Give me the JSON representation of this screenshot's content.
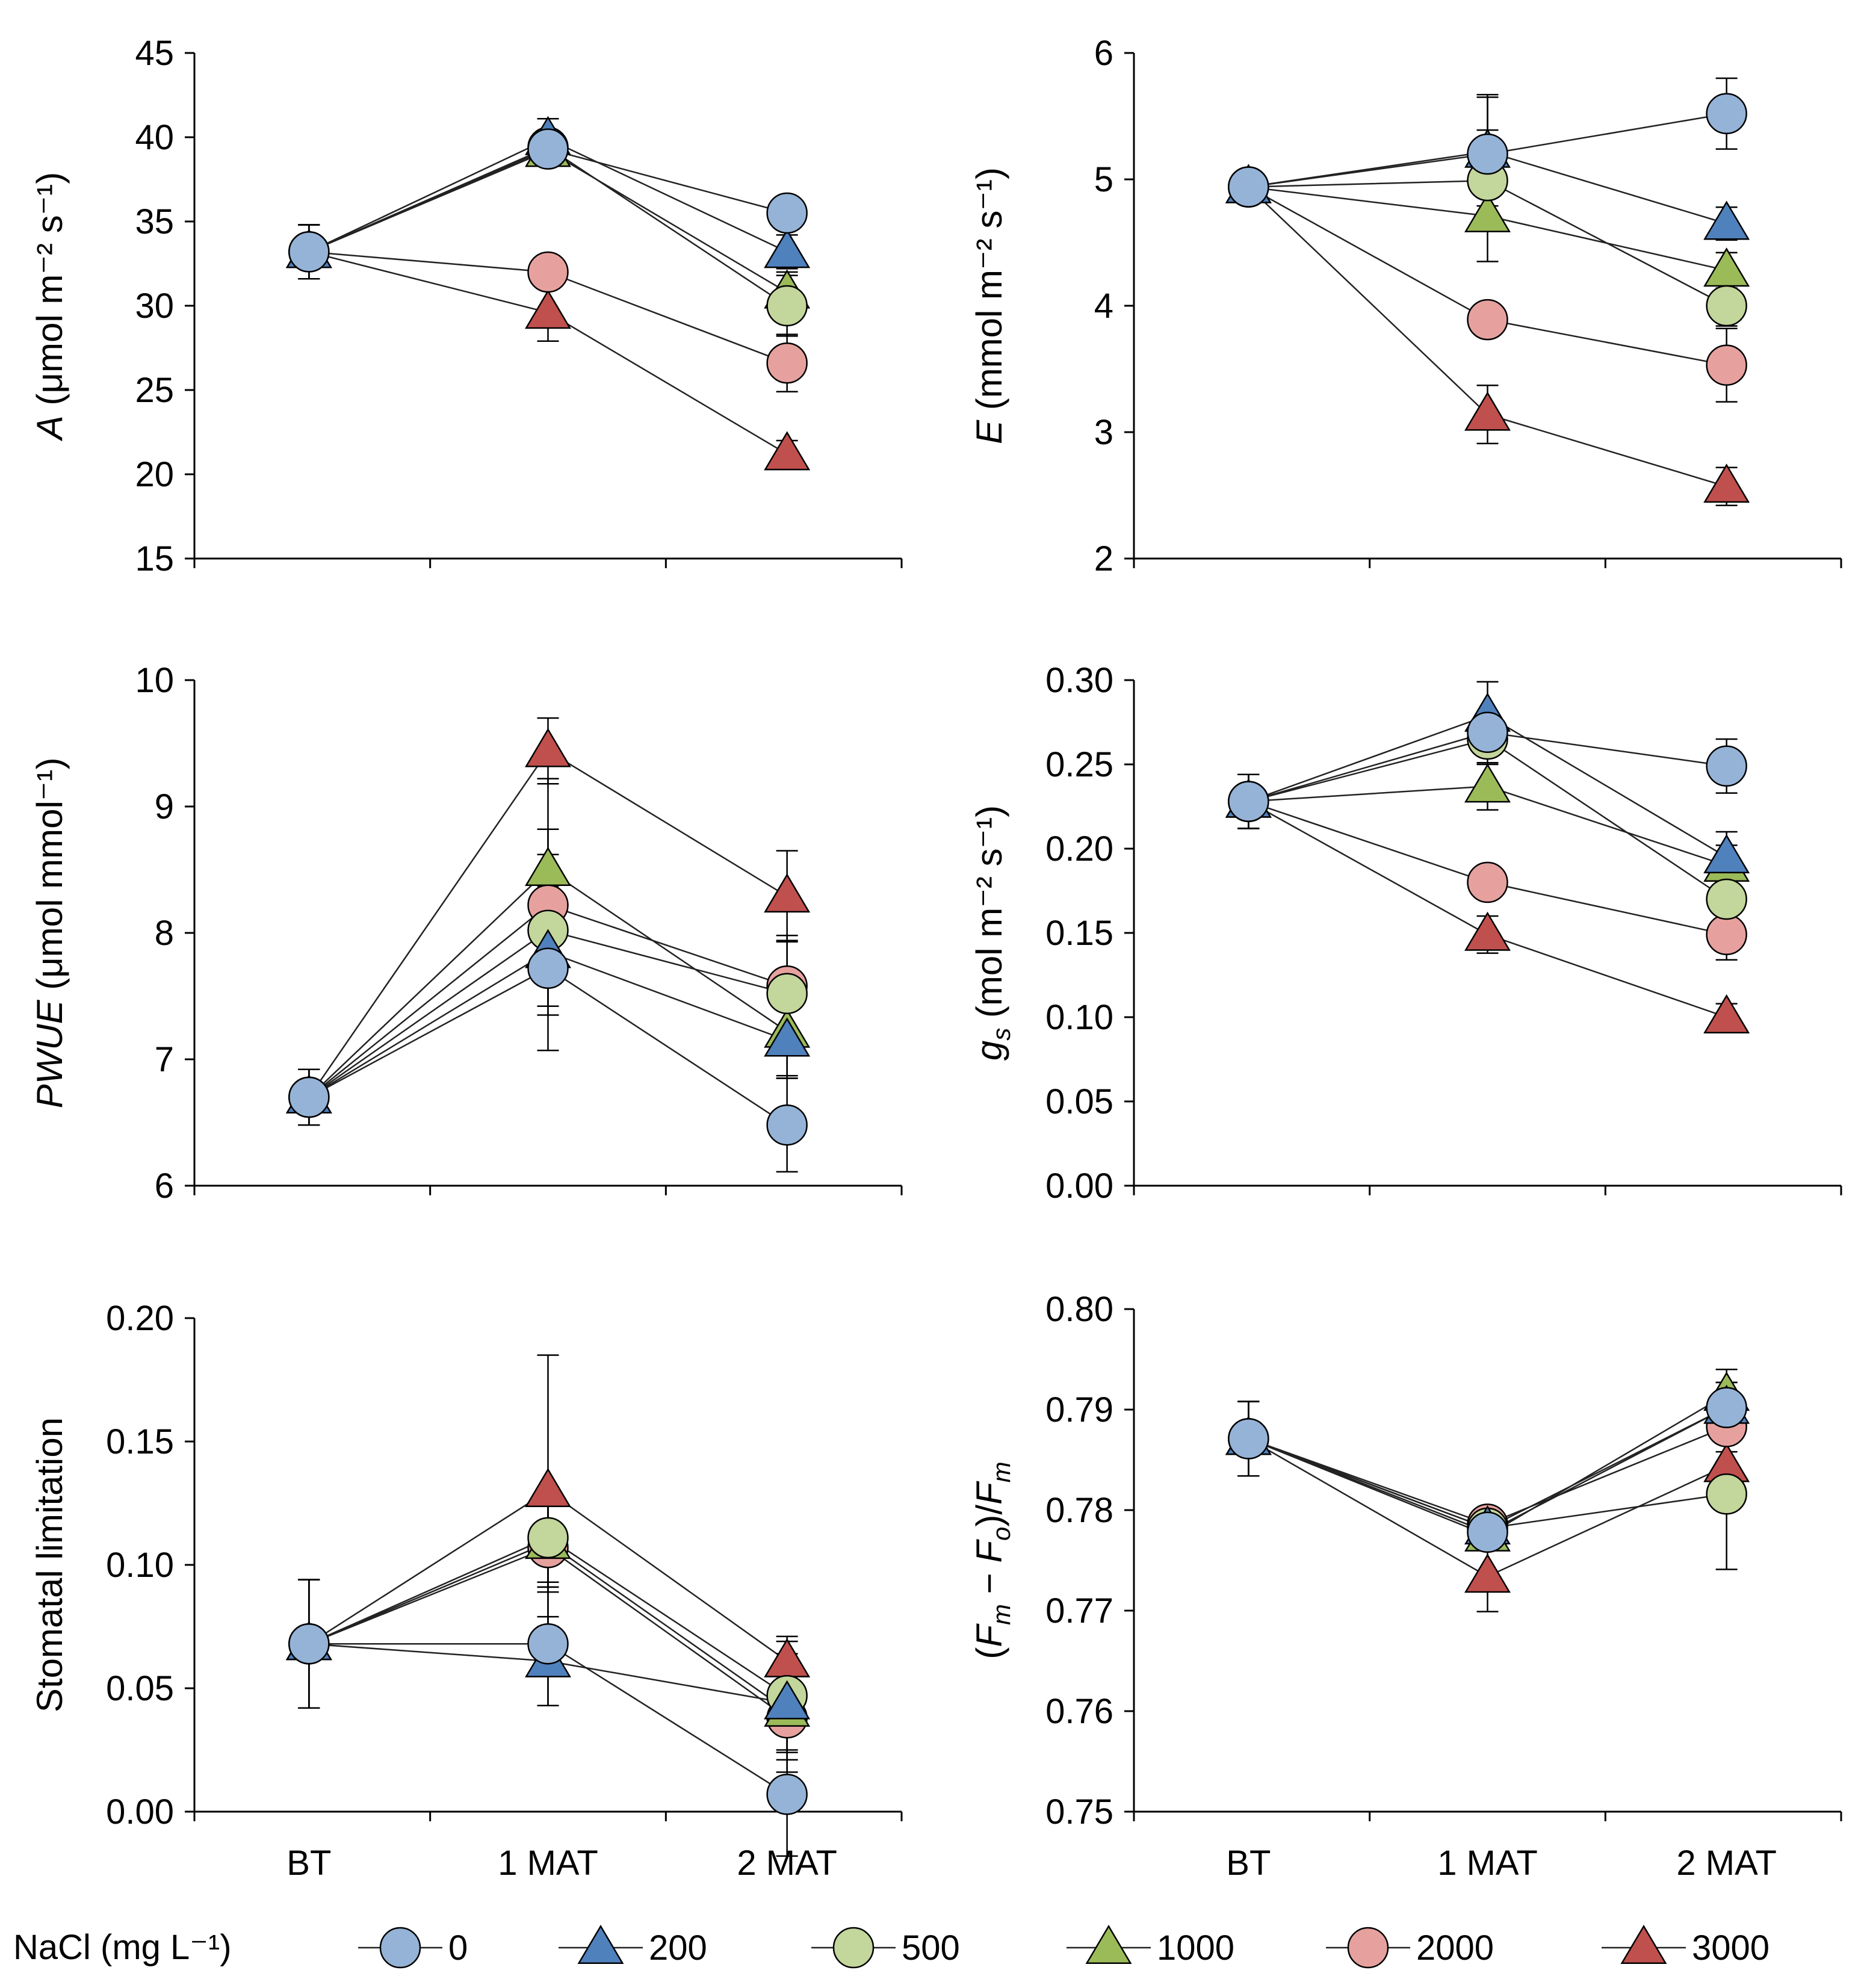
{
  "legend": {
    "title": "NaCl (mg L⁻¹)",
    "items": [
      {
        "label": "0",
        "marker": "circle",
        "color": "#95B3D7"
      },
      {
        "label": "200",
        "marker": "triangle",
        "color": "#4F81BD"
      },
      {
        "label": "500",
        "marker": "circle",
        "color": "#C3D69B"
      },
      {
        "label": "1000",
        "marker": "triangle",
        "color": "#9BBB59"
      },
      {
        "label": "2000",
        "marker": "circle",
        "color": "#E6A19E"
      },
      {
        "label": "3000",
        "marker": "triangle",
        "color": "#C0504D"
      }
    ]
  },
  "chart_data": [
    {
      "id": "A",
      "type": "line",
      "categories": [
        "BT",
        "1 MAT",
        "2 MAT"
      ],
      "ylabel": {
        "italic": "A",
        "rest": " (μmol m⁻² s⁻¹)"
      },
      "ylim": [
        15,
        45
      ],
      "yticks": [
        15,
        20,
        25,
        30,
        35,
        40,
        45
      ],
      "ytick_labels": [
        "15",
        "20",
        "25",
        "30",
        "35",
        "40",
        "45"
      ],
      "series": [
        {
          "name": "0",
          "values": [
            33.2,
            39.3,
            35.5
          ],
          "errors": [
            1.6,
            0.9,
            0.8
          ]
        },
        {
          "name": "200",
          "values": [
            33.2,
            39.9,
            33.2
          ],
          "errors": [
            1.6,
            1.2,
            1.0
          ]
        },
        {
          "name": "500",
          "values": [
            33.2,
            39.4,
            30.0
          ],
          "errors": [
            1.6,
            0.9,
            1.8
          ]
        },
        {
          "name": "1000",
          "values": [
            33.2,
            39.2,
            30.8
          ],
          "errors": [
            1.6,
            0.8,
            1.2
          ]
        },
        {
          "name": "2000",
          "values": [
            33.2,
            32.0,
            26.6
          ],
          "errors": [
            1.6,
            0.9,
            1.7
          ]
        },
        {
          "name": "3000",
          "values": [
            33.2,
            29.6,
            21.2
          ],
          "errors": [
            1.6,
            1.7,
            0.8
          ]
        }
      ]
    },
    {
      "id": "E",
      "type": "line",
      "categories": [
        "BT",
        "1 MAT",
        "2 MAT"
      ],
      "ylabel": {
        "italic": "E",
        "rest": " (mmol m⁻² s⁻¹)"
      },
      "ylim": [
        2,
        6
      ],
      "yticks": [
        2,
        3,
        4,
        5,
        6
      ],
      "ytick_labels": [
        "2",
        "3",
        "4",
        "5",
        "6"
      ],
      "series": [
        {
          "name": "0",
          "values": [
            4.94,
            5.2,
            5.52
          ],
          "errors": [
            0.1,
            0.47,
            0.28
          ]
        },
        {
          "name": "200",
          "values": [
            4.94,
            5.22,
            4.65
          ],
          "errors": [
            0.1,
            0.43,
            0.13
          ]
        },
        {
          "name": "500",
          "values": [
            4.94,
            4.99,
            4.0
          ],
          "errors": [
            0.1,
            0.4,
            0.16
          ]
        },
        {
          "name": "1000",
          "values": [
            4.94,
            4.71,
            4.28
          ],
          "errors": [
            0.1,
            0.36,
            0.14
          ]
        },
        {
          "name": "2000",
          "values": [
            4.94,
            3.89,
            3.53
          ],
          "errors": [
            0.1,
            0.1,
            0.29
          ]
        },
        {
          "name": "3000",
          "values": [
            4.94,
            3.14,
            2.57
          ],
          "errors": [
            0.1,
            0.23,
            0.15
          ]
        }
      ]
    },
    {
      "id": "PWUE",
      "type": "line",
      "categories": [
        "BT",
        "1 MAT",
        "2 MAT"
      ],
      "ylabel": {
        "italic": "PWUE",
        "rest": " (μmol mmol⁻¹)"
      },
      "ylim": [
        6,
        10
      ],
      "yticks": [
        6,
        7,
        8,
        9,
        10
      ],
      "ytick_labels": [
        "6",
        "7",
        "8",
        "9",
        "10"
      ],
      "series": [
        {
          "name": "0",
          "values": [
            6.7,
            7.72,
            6.48
          ],
          "errors": [
            0.22,
            0.65,
            0.37
          ]
        },
        {
          "name": "200",
          "values": [
            6.7,
            7.85,
            7.15
          ],
          "errors": [
            0.22,
            0.5,
            0.3
          ]
        },
        {
          "name": "500",
          "values": [
            6.7,
            8.02,
            7.52
          ],
          "errors": [
            0.22,
            0.6,
            0.42
          ]
        },
        {
          "name": "1000",
          "values": [
            6.7,
            8.5,
            7.22
          ],
          "errors": [
            0.22,
            0.72,
            0.35
          ]
        },
        {
          "name": "2000",
          "values": [
            6.7,
            8.22,
            7.58
          ],
          "errors": [
            0.22,
            0.6,
            0.4
          ]
        },
        {
          "name": "3000",
          "values": [
            6.7,
            9.44,
            8.29
          ],
          "errors": [
            0.22,
            0.26,
            0.36
          ]
        }
      ]
    },
    {
      "id": "gs",
      "type": "line",
      "categories": [
        "BT",
        "1 MAT",
        "2 MAT"
      ],
      "ylabel": {
        "italic": "g",
        "sub": "s",
        "rest": " (mol m⁻² s⁻¹)"
      },
      "ylim": [
        0,
        0.3
      ],
      "yticks": [
        0,
        0.05,
        0.1,
        0.15,
        0.2,
        0.25,
        0.3
      ],
      "ytick_labels": [
        "0.00",
        "0.05",
        "0.10",
        "0.15",
        "0.20",
        "0.25",
        "0.30"
      ],
      "series": [
        {
          "name": "0",
          "values": [
            0.228,
            0.269,
            0.249
          ],
          "errors": [
            0.016,
            0.012,
            0.016
          ]
        },
        {
          "name": "200",
          "values": [
            0.228,
            0.279,
            0.195
          ],
          "errors": [
            0.016,
            0.02,
            0.015
          ]
        },
        {
          "name": "500",
          "values": [
            0.228,
            0.265,
            0.17
          ],
          "errors": [
            0.016,
            0.015,
            0.012
          ]
        },
        {
          "name": "1000",
          "values": [
            0.228,
            0.237,
            0.19
          ],
          "errors": [
            0.016,
            0.014,
            0.012
          ]
        },
        {
          "name": "2000",
          "values": [
            0.228,
            0.18,
            0.149
          ],
          "errors": [
            0.016,
            0.01,
            0.015
          ]
        },
        {
          "name": "3000",
          "values": [
            0.228,
            0.149,
            0.1
          ],
          "errors": [
            0.016,
            0.011,
            0.008
          ]
        }
      ]
    },
    {
      "id": "SL",
      "type": "line",
      "categories": [
        "BT",
        "1 MAT",
        "2 MAT"
      ],
      "ylabel": {
        "rest": "Stomatal limitation"
      },
      "ylim": [
        0,
        0.2
      ],
      "yticks": [
        0,
        0.05,
        0.1,
        0.15,
        0.2
      ],
      "ytick_labels": [
        "0.00",
        "0.05",
        "0.10",
        "0.15",
        "0.20"
      ],
      "series": [
        {
          "name": "0",
          "values": [
            0.068,
            0.068,
            0.007
          ],
          "errors": [
            0.026,
            0.025,
            0.025
          ]
        },
        {
          "name": "200",
          "values": [
            0.068,
            0.061,
            0.044
          ],
          "errors": [
            0.026,
            0.018,
            0.02
          ]
        },
        {
          "name": "500",
          "values": [
            0.068,
            0.111,
            0.047
          ],
          "errors": [
            0.026,
            0.02,
            0.022
          ]
        },
        {
          "name": "1000",
          "values": [
            0.068,
            0.109,
            0.041
          ],
          "errors": [
            0.026,
            0.018,
            0.02
          ]
        },
        {
          "name": "2000",
          "values": [
            0.068,
            0.107,
            0.038
          ],
          "errors": [
            0.026,
            0.018,
            0.022
          ]
        },
        {
          "name": "3000",
          "values": [
            0.068,
            0.13,
            0.061
          ],
          "errors": [
            0.026,
            0.055,
            0.01
          ]
        }
      ]
    },
    {
      "id": "FvFm",
      "type": "line",
      "categories": [
        "BT",
        "1 MAT",
        "2 MAT"
      ],
      "ylabel": {
        "fvfm": true
      },
      "ylim": [
        0.75,
        0.8
      ],
      "yticks": [
        0.75,
        0.76,
        0.77,
        0.78,
        0.79,
        0.8
      ],
      "ytick_labels": [
        "0.75",
        "0.76",
        "0.77",
        "0.78",
        "0.79",
        "0.80"
      ],
      "series": [
        {
          "name": "0",
          "values": [
            0.7871,
            0.7778,
            0.7902
          ],
          "errors": [
            0.0037,
            0.0012,
            0.0025
          ]
        },
        {
          "name": "200",
          "values": [
            0.7871,
            0.7782,
            0.7902
          ],
          "errors": [
            0.0037,
            0.0012,
            0.0025
          ]
        },
        {
          "name": "500",
          "values": [
            0.7871,
            0.7782,
            0.7816
          ],
          "errors": [
            0.0037,
            0.0012,
            0.0075
          ]
        },
        {
          "name": "1000",
          "values": [
            0.7871,
            0.7775,
            0.7915
          ],
          "errors": [
            0.0037,
            0.0012,
            0.0025
          ]
        },
        {
          "name": "2000",
          "values": [
            0.7871,
            0.7786,
            0.7883
          ],
          "errors": [
            0.0037,
            0.0012,
            0.0025
          ]
        },
        {
          "name": "3000",
          "values": [
            0.7871,
            0.7734,
            0.7844
          ],
          "errors": [
            0.0037,
            0.0035,
            0.0035
          ]
        }
      ]
    }
  ]
}
